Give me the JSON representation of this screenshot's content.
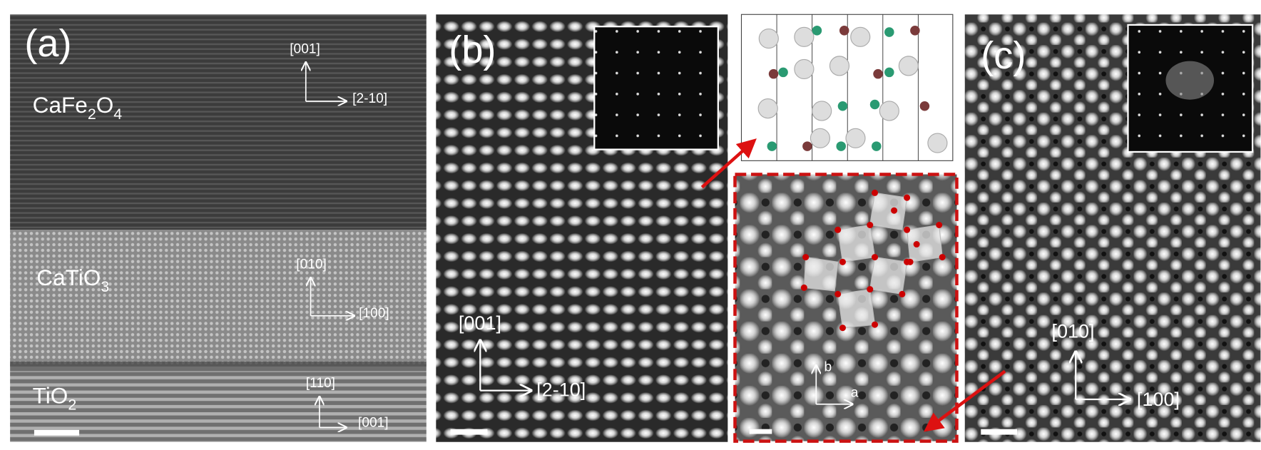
{
  "panels": {
    "a": {
      "label": "(a)",
      "layers": [
        {
          "formula": [
            "CaFe",
            "2",
            "O",
            "4"
          ]
        },
        {
          "formula": [
            "CaTiO",
            "3"
          ]
        },
        {
          "formula": [
            "TiO",
            "2"
          ]
        }
      ],
      "axes": [
        {
          "up": "[001]",
          "right": "[2-10]"
        },
        {
          "up": "[010]",
          "right": "[100]"
        },
        {
          "up": "[110]",
          "right": "[001]"
        }
      ]
    },
    "b": {
      "label": "(b)",
      "axes": {
        "up": "[001]",
        "right": "[2-10]"
      },
      "inset_axes": {
        "up": "b",
        "right": "a"
      }
    },
    "c": {
      "label": "(c)",
      "axes": {
        "up": "[010]",
        "right": "[100]"
      }
    }
  }
}
